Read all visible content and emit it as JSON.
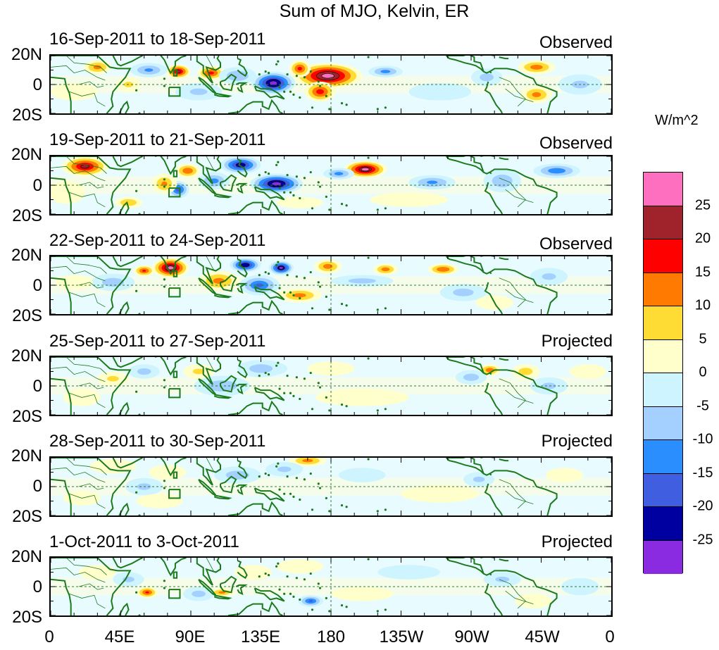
{
  "chart_data": {
    "type": "heatmap",
    "title": "Sum of MJO, Kelvin, ER",
    "units": "W/m^2",
    "lat_tick_labels": [
      "20N",
      "0",
      "20S"
    ],
    "lon_tick_labels": [
      "0",
      "45E",
      "90E",
      "135E",
      "180",
      "135W",
      "90W",
      "45W",
      "0"
    ],
    "colorbar": {
      "levels": [
        "25",
        "20",
        "15",
        "10",
        "5",
        "0",
        "-5",
        "-10",
        "-15",
        "-20",
        "-25"
      ],
      "colors": [
        "#ff6fc0",
        "#a0222a",
        "#ff0000",
        "#ff7a00",
        "#ffdc33",
        "#ffffcc",
        "#cdf4ff",
        "#a3d0ff",
        "#2a8eff",
        "#3f5ee0",
        "#0000a0",
        "#8a2be2"
      ]
    },
    "panels": [
      {
        "title": "16-Sep-2011 to 18-Sep-2011",
        "status": "Observed",
        "anomalies": [
          {
            "lon": 178,
            "lat": 6,
            "w": 22,
            "h": 9,
            "v": 28
          },
          {
            "lon": 143,
            "lat": 1,
            "w": 14,
            "h": 8,
            "v": -28
          },
          {
            "lon": 103,
            "lat": 8,
            "w": 9,
            "h": 5,
            "v": 17
          },
          {
            "lon": 82,
            "lat": 9,
            "w": 8,
            "h": 5,
            "v": 22
          },
          {
            "lon": 173,
            "lat": -5,
            "w": 10,
            "h": 7,
            "v": 18
          },
          {
            "lon": 160,
            "lat": 11,
            "w": 7,
            "h": 6,
            "v": 17
          },
          {
            "lon": 215,
            "lat": 9,
            "w": 11,
            "h": 4,
            "v": -12
          },
          {
            "lon": 312,
            "lat": 12,
            "w": 12,
            "h": 5,
            "v": 13
          },
          {
            "lon": 312,
            "lat": -7,
            "w": 10,
            "h": 6,
            "v": 12
          },
          {
            "lon": 30,
            "lat": 12,
            "w": 9,
            "h": 5,
            "v": 12
          },
          {
            "lon": 63,
            "lat": 10,
            "w": 12,
            "h": 5,
            "v": -11
          },
          {
            "lon": 120,
            "lat": 6,
            "w": 12,
            "h": 6,
            "v": -10
          },
          {
            "lon": 95,
            "lat": -5,
            "w": 15,
            "h": 6,
            "v": -6
          },
          {
            "lon": 15,
            "lat": -5,
            "w": 15,
            "h": 6,
            "v": 4
          },
          {
            "lon": 50,
            "lat": 0,
            "w": 8,
            "h": 5,
            "v": 6
          },
          {
            "lon": 250,
            "lat": -5,
            "w": 20,
            "h": 6,
            "v": -4
          },
          {
            "lon": 280,
            "lat": 5,
            "w": 10,
            "h": 6,
            "v": -7
          },
          {
            "lon": 340,
            "lat": 0,
            "w": 14,
            "h": 7,
            "v": -6
          }
        ]
      },
      {
        "title": "19-Sep-2011 to 21-Sep-2011",
        "status": "Observed",
        "anomalies": [
          {
            "lon": 22,
            "lat": 13,
            "w": 15,
            "h": 7,
            "v": 22
          },
          {
            "lon": 145,
            "lat": 1,
            "w": 17,
            "h": 7,
            "v": -28
          },
          {
            "lon": 122,
            "lat": 14,
            "w": 13,
            "h": 6,
            "v": -24
          },
          {
            "lon": 202,
            "lat": 11,
            "w": 14,
            "h": 6,
            "v": 26
          },
          {
            "lon": 88,
            "lat": 10,
            "w": 8,
            "h": 5,
            "v": 15
          },
          {
            "lon": 82,
            "lat": -3,
            "w": 7,
            "h": 6,
            "v": -18
          },
          {
            "lon": 73,
            "lat": 1,
            "w": 8,
            "h": 7,
            "v": 11
          },
          {
            "lon": 105,
            "lat": 3,
            "w": 10,
            "h": 6,
            "v": -12
          },
          {
            "lon": 185,
            "lat": 8,
            "w": 10,
            "h": 4,
            "v": -12
          },
          {
            "lon": 245,
            "lat": 2,
            "w": 15,
            "h": 5,
            "v": -11
          },
          {
            "lon": 290,
            "lat": 3,
            "w": 12,
            "h": 8,
            "v": -9
          },
          {
            "lon": 325,
            "lat": 10,
            "w": 15,
            "h": 5,
            "v": -14
          },
          {
            "lon": 50,
            "lat": -12,
            "w": 9,
            "h": 4,
            "v": 10
          },
          {
            "lon": 160,
            "lat": -12,
            "w": 15,
            "h": 4,
            "v": 4
          },
          {
            "lon": 230,
            "lat": -10,
            "w": 25,
            "h": 5,
            "v": 3
          },
          {
            "lon": 10,
            "lat": -5,
            "w": 12,
            "h": 8,
            "v": 5
          }
        ]
      },
      {
        "title": "22-Sep-2011 to 24-Sep-2011",
        "status": "Observed",
        "anomalies": [
          {
            "lon": 77,
            "lat": 12,
            "w": 12,
            "h": 7,
            "v": 27
          },
          {
            "lon": 125,
            "lat": 14,
            "w": 10,
            "h": 5,
            "v": -25
          },
          {
            "lon": 148,
            "lat": 12,
            "w": 8,
            "h": 5,
            "v": -26
          },
          {
            "lon": 60,
            "lat": 10,
            "w": 7,
            "h": 4,
            "v": 16
          },
          {
            "lon": 108,
            "lat": 3,
            "w": 13,
            "h": 7,
            "v": 12
          },
          {
            "lon": 134,
            "lat": 0,
            "w": 13,
            "h": 7,
            "v": -16
          },
          {
            "lon": 160,
            "lat": -7,
            "w": 14,
            "h": 5,
            "v": 12
          },
          {
            "lon": 178,
            "lat": 13,
            "w": 9,
            "h": 5,
            "v": 13
          },
          {
            "lon": 215,
            "lat": 11,
            "w": 8,
            "h": 4,
            "v": 13
          },
          {
            "lon": 252,
            "lat": 11,
            "w": 10,
            "h": 4,
            "v": 15
          },
          {
            "lon": 200,
            "lat": 3,
            "w": 20,
            "h": 4,
            "v": -7
          },
          {
            "lon": 40,
            "lat": 2,
            "w": 14,
            "h": 6,
            "v": -8
          },
          {
            "lon": 15,
            "lat": 2,
            "w": 12,
            "h": 5,
            "v": 4
          },
          {
            "lon": 265,
            "lat": -5,
            "w": 15,
            "h": 6,
            "v": -7
          },
          {
            "lon": 320,
            "lat": 6,
            "w": 12,
            "h": 6,
            "v": -6
          },
          {
            "lon": 285,
            "lat": -12,
            "w": 12,
            "h": 5,
            "v": 3
          }
        ]
      },
      {
        "title": "25-Sep-2011 to 27-Sep-2011",
        "status": "Projected",
        "anomalies": [
          {
            "lon": 145,
            "lat": 12,
            "w": 7,
            "h": 4,
            "v": -16
          },
          {
            "lon": 135,
            "lat": 12,
            "w": 15,
            "h": 6,
            "v": -8
          },
          {
            "lon": 282,
            "lat": 11,
            "w": 7,
            "h": 4,
            "v": 14
          },
          {
            "lon": 305,
            "lat": 10,
            "w": 9,
            "h": 5,
            "v": 8
          },
          {
            "lon": 40,
            "lat": 5,
            "w": 10,
            "h": 5,
            "v": 6
          },
          {
            "lon": 60,
            "lat": 10,
            "w": 10,
            "h": 5,
            "v": -7
          },
          {
            "lon": 110,
            "lat": 0,
            "w": 18,
            "h": 7,
            "v": -9
          },
          {
            "lon": 95,
            "lat": 10,
            "w": 10,
            "h": 5,
            "v": 6
          },
          {
            "lon": 180,
            "lat": 12,
            "w": 15,
            "h": 5,
            "v": 5
          },
          {
            "lon": 270,
            "lat": 6,
            "w": 10,
            "h": 5,
            "v": -8
          },
          {
            "lon": 320,
            "lat": 0,
            "w": 12,
            "h": 6,
            "v": -6
          },
          {
            "lon": 20,
            "lat": -8,
            "w": 12,
            "h": 6,
            "v": 4
          },
          {
            "lon": 200,
            "lat": -8,
            "w": 30,
            "h": 6,
            "v": 2
          },
          {
            "lon": 345,
            "lat": 10,
            "w": 12,
            "h": 5,
            "v": 4
          }
        ]
      },
      {
        "title": "28-Sep-2011 to 30-Sep-2011",
        "status": "Projected",
        "anomalies": [
          {
            "lon": 165,
            "lat": 18,
            "w": 12,
            "h": 4,
            "v": 12
          },
          {
            "lon": 40,
            "lat": 14,
            "w": 15,
            "h": 5,
            "v": 5
          },
          {
            "lon": 75,
            "lat": 10,
            "w": 12,
            "h": 5,
            "v": 4
          },
          {
            "lon": 60,
            "lat": 0,
            "w": 12,
            "h": 6,
            "v": -6
          },
          {
            "lon": 120,
            "lat": 8,
            "w": 15,
            "h": 6,
            "v": -8
          },
          {
            "lon": 150,
            "lat": 12,
            "w": 12,
            "h": 5,
            "v": -6
          },
          {
            "lon": 200,
            "lat": 8,
            "w": 15,
            "h": 5,
            "v": -4
          },
          {
            "lon": 70,
            "lat": -10,
            "w": 15,
            "h": 5,
            "v": 4
          },
          {
            "lon": 275,
            "lat": 5,
            "w": 10,
            "h": 5,
            "v": -6
          },
          {
            "lon": 330,
            "lat": 8,
            "w": 12,
            "h": 5,
            "v": 5
          },
          {
            "lon": 250,
            "lat": -5,
            "w": 25,
            "h": 6,
            "v": 2
          },
          {
            "lon": 20,
            "lat": -8,
            "w": 12,
            "h": 5,
            "v": 4
          }
        ]
      },
      {
        "title": "1-Oct-2011 to 3-Oct-2011",
        "status": "Projected",
        "anomalies": [
          {
            "lon": 62,
            "lat": -4,
            "w": 7,
            "h": 4,
            "v": 16
          },
          {
            "lon": 110,
            "lat": -4,
            "w": 8,
            "h": 3,
            "v": 12
          },
          {
            "lon": 167,
            "lat": -10,
            "w": 8,
            "h": 4,
            "v": -16
          },
          {
            "lon": 95,
            "lat": -5,
            "w": 10,
            "h": 5,
            "v": -7
          },
          {
            "lon": 130,
            "lat": 10,
            "w": 12,
            "h": 5,
            "v": 5
          },
          {
            "lon": 160,
            "lat": 14,
            "w": 15,
            "h": 5,
            "v": 4
          },
          {
            "lon": 30,
            "lat": 10,
            "w": 12,
            "h": 5,
            "v": 4
          },
          {
            "lon": 50,
            "lat": 5,
            "w": 10,
            "h": 5,
            "v": -6
          },
          {
            "lon": 230,
            "lat": 10,
            "w": 20,
            "h": 5,
            "v": -4
          },
          {
            "lon": 290,
            "lat": 5,
            "w": 12,
            "h": 5,
            "v": -6
          },
          {
            "lon": 310,
            "lat": -10,
            "w": 12,
            "h": 5,
            "v": 4
          },
          {
            "lon": 200,
            "lat": -5,
            "w": 20,
            "h": 5,
            "v": 2
          },
          {
            "lon": 340,
            "lat": 0,
            "w": 12,
            "h": 6,
            "v": -5
          }
        ]
      }
    ]
  }
}
